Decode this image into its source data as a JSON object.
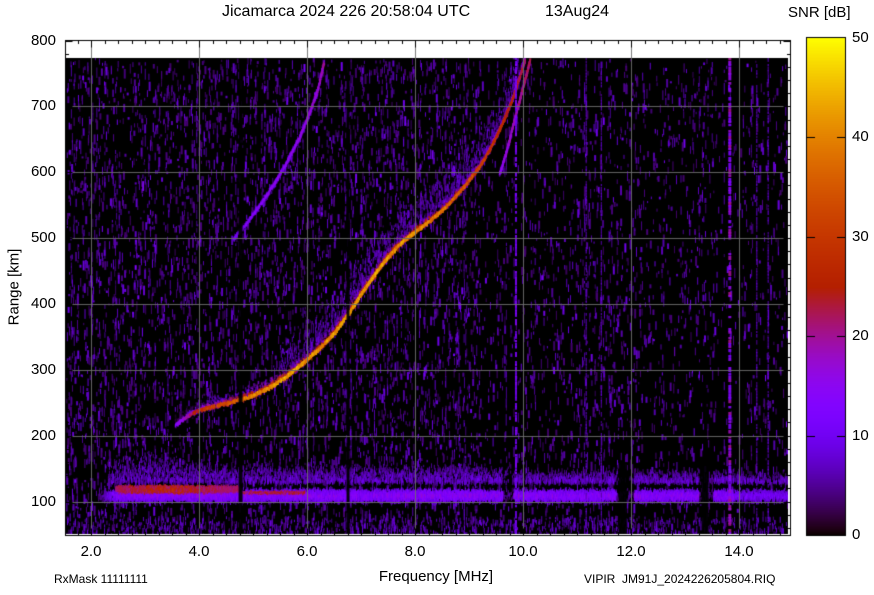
{
  "chart_data": {
    "type": "heatmap",
    "title": "Jicamarca 2024 226 20:58:04 UTC",
    "date_label": "13Aug24",
    "footer_left": "RxMask 11111111",
    "footer_right": "VIPIR  JM91J_2024226205804.RIQ",
    "x_axis": {
      "label": "Frequency [MHz]",
      "ticks": [
        2.0,
        4.0,
        6.0,
        8.0,
        10.0,
        12.0,
        14.0
      ],
      "minor_step": 0.25,
      "range": [
        1.53,
        14.95
      ]
    },
    "y_axis": {
      "label": "Range [km]",
      "ticks": [
        100,
        200,
        300,
        400,
        500,
        600,
        700,
        800
      ],
      "minor_step": 20,
      "range": [
        50,
        800
      ]
    },
    "colorbar": {
      "label": "SNR [dB]",
      "ticks": [
        0,
        10,
        20,
        30,
        40,
        50
      ],
      "range": [
        0,
        50
      ],
      "palette_model": "gnuplot-pm3d (black-violet-magenta-red-orange-yellow)",
      "palette_stops": [
        "#000000",
        "#7202f2",
        "#a11096",
        "#b52000",
        "#e48300",
        "#ffff00"
      ]
    },
    "grid": {
      "on": true,
      "color": "#6e6e6e"
    },
    "layers": {
      "o_trace": [
        [
          3.55,
          218,
          13
        ],
        [
          3.7,
          227,
          17
        ],
        [
          3.9,
          237,
          24
        ],
        [
          4.1,
          243,
          30
        ],
        [
          4.4,
          249,
          33
        ],
        [
          4.7,
          255,
          36
        ],
        [
          5.0,
          263,
          40
        ],
        [
          5.3,
          275,
          42
        ],
        [
          5.6,
          291,
          43
        ],
        [
          5.9,
          311,
          42
        ],
        [
          6.2,
          332,
          41
        ],
        [
          6.5,
          358,
          42
        ],
        [
          6.8,
          392,
          43
        ],
        [
          7.1,
          430,
          42
        ],
        [
          7.4,
          464,
          42
        ],
        [
          7.7,
          492,
          41
        ],
        [
          8.0,
          512,
          40
        ],
        [
          8.3,
          530,
          39
        ],
        [
          8.6,
          552,
          37
        ],
        [
          8.9,
          580,
          34
        ],
        [
          9.2,
          612,
          31
        ],
        [
          9.4,
          640,
          29
        ],
        [
          9.6,
          674,
          27
        ],
        [
          9.8,
          714,
          25
        ],
        [
          9.95,
          752,
          23
        ],
        [
          10.02,
          772,
          21
        ]
      ],
      "o_trace_split": [
        [
          9.55,
          598,
          15
        ],
        [
          9.7,
          638,
          17
        ],
        [
          9.85,
          688,
          19
        ],
        [
          9.98,
          728,
          21
        ],
        [
          10.12,
          772,
          23
        ]
      ],
      "x_trace": [
        [
          4.62,
          500,
          9
        ],
        [
          4.85,
          522,
          11
        ],
        [
          5.1,
          550,
          12
        ],
        [
          5.35,
          580,
          13
        ],
        [
          5.6,
          615,
          13
        ],
        [
          5.85,
          655,
          14
        ],
        [
          6.05,
          695,
          15
        ],
        [
          6.2,
          730,
          16
        ],
        [
          6.3,
          768,
          18
        ]
      ],
      "o_trace_upper_fuzz_mhz": [
        5.5,
        9.9
      ],
      "e_layer": {
        "band_range_km": [
          100,
          134
        ],
        "band_center_km": 111,
        "start_freq_mhz": 2.1,
        "core": {
          "freq_mhz": [
            2.45,
            4.75
          ],
          "range_km": [
            108,
            130
          ],
          "snr": 30
        },
        "core_dashes_mhz": [
          4.75,
          5.95
        ],
        "gaps_mhz": [
          [
            9.62,
            9.82
          ],
          [
            11.72,
            12.05
          ],
          [
            13.25,
            13.52
          ]
        ],
        "dim_above_mhz": 13.9
      },
      "noise": {
        "snr_range_db": [
          3,
          13
        ],
        "dense_below_mhz": 9.2
      },
      "rfi_lines_mhz": [
        {
          "f": 13.83,
          "snr": 16,
          "w": 3
        },
        {
          "f": 9.87,
          "snr": 11,
          "w": 2
        },
        {
          "f": 11.17,
          "snr": 7,
          "w": 1
        },
        {
          "f": 11.45,
          "snr": 7,
          "w": 1
        },
        {
          "f": 14.33,
          "snr": 7,
          "w": 1
        },
        {
          "f": 14.54,
          "snr": 8,
          "w": 1
        }
      ],
      "dropout_lines_mhz": [
        {
          "f": 4.77,
          "w": 4,
          "bottom_only": false
        },
        {
          "f": 6.76,
          "w": 3,
          "bottom_only": false
        },
        {
          "f": 11.85,
          "w": 8,
          "bottom_only": true
        },
        {
          "f": 13.37,
          "w": 7,
          "bottom_only": true
        }
      ]
    }
  }
}
